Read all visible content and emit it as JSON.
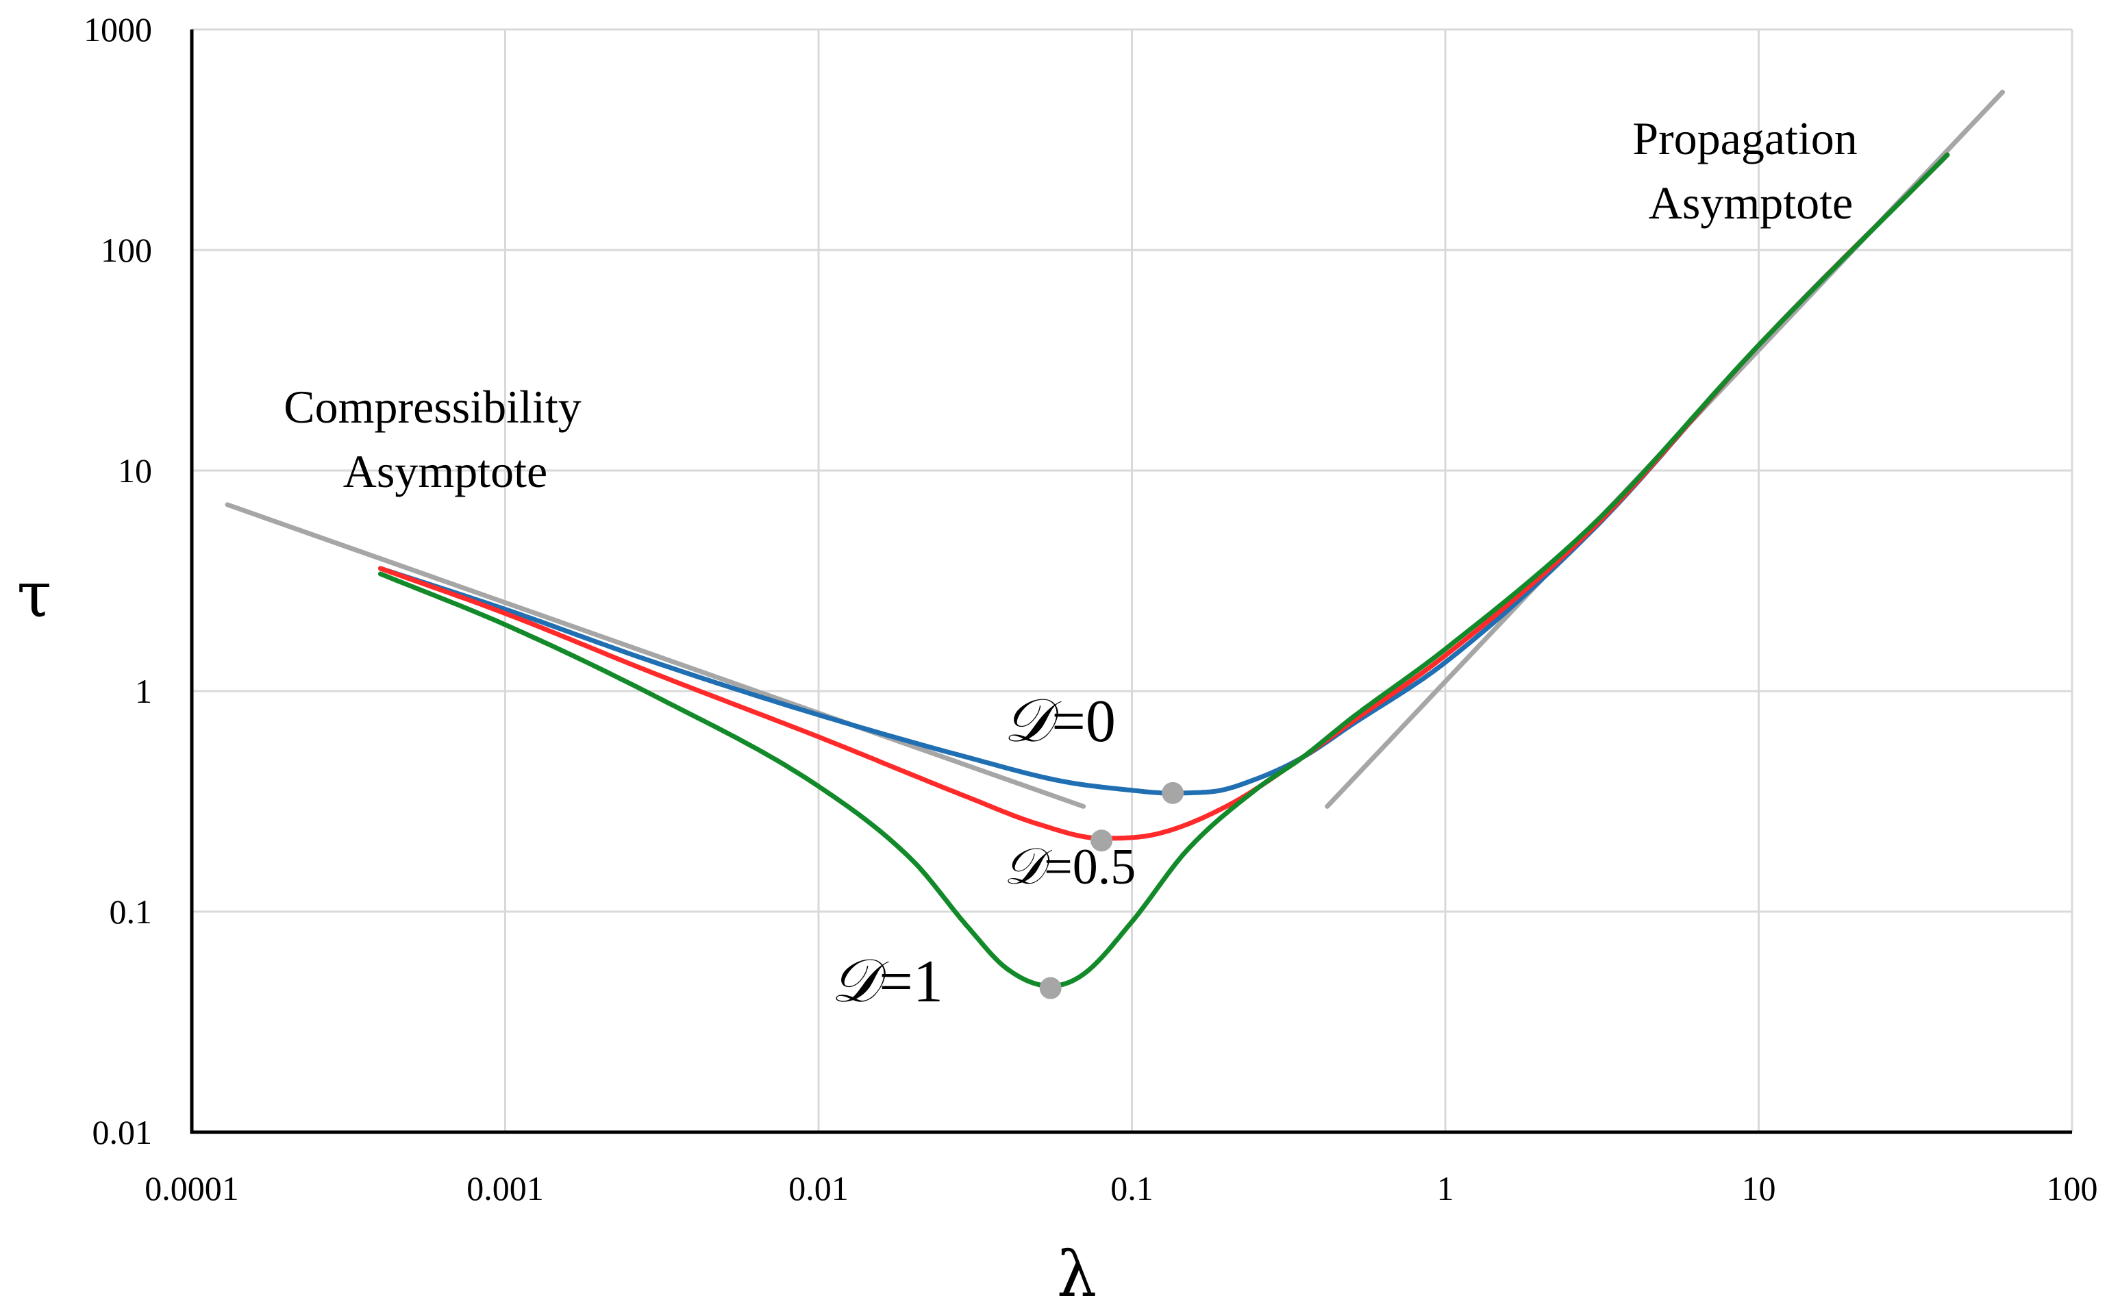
{
  "chart_data": {
    "type": "line",
    "xscale": "log",
    "yscale": "log",
    "xlabel": "λ",
    "ylabel": "τ",
    "xlim": [
      0.0001,
      100
    ],
    "ylim": [
      0.01,
      1000
    ],
    "grid": true,
    "x_ticks": [
      "0.0001",
      "0.001",
      "0.01",
      "0.1",
      "1",
      "10",
      "100"
    ],
    "y_ticks": [
      "1000",
      "100",
      "10",
      "1",
      "0.1",
      "0.01"
    ],
    "series": [
      {
        "name": "D=0",
        "symbol": "𝒟",
        "value_text": "=0",
        "color": "#1f6fb2",
        "points": [
          [
            0.0004,
            3.6
          ],
          [
            0.001,
            2.35
          ],
          [
            0.003,
            1.35
          ],
          [
            0.01,
            0.78
          ],
          [
            0.03,
            0.5
          ],
          [
            0.06,
            0.39
          ],
          [
            0.1,
            0.355
          ],
          [
            0.13,
            0.345
          ],
          [
            0.18,
            0.35
          ],
          [
            0.25,
            0.4
          ],
          [
            0.35,
            0.5
          ],
          [
            0.5,
            0.7
          ],
          [
            1,
            1.35
          ],
          [
            3,
            5.5
          ],
          [
            10,
            37
          ],
          [
            40,
            270
          ]
        ],
        "minimum": [
          0.135,
          0.345
        ]
      },
      {
        "name": "D=0.5",
        "symbol": "𝒟",
        "value_text": "=0.5",
        "color": "#ff2a2a",
        "points": [
          [
            0.0004,
            3.6
          ],
          [
            0.001,
            2.25
          ],
          [
            0.003,
            1.2
          ],
          [
            0.01,
            0.62
          ],
          [
            0.03,
            0.33
          ],
          [
            0.05,
            0.25
          ],
          [
            0.08,
            0.215
          ],
          [
            0.12,
            0.225
          ],
          [
            0.2,
            0.3
          ],
          [
            0.35,
            0.5
          ],
          [
            0.5,
            0.72
          ],
          [
            1,
            1.45
          ],
          [
            3,
            5.6
          ],
          [
            10,
            37
          ],
          [
            40,
            270
          ]
        ],
        "minimum": [
          0.08,
          0.21
        ]
      },
      {
        "name": "D=1",
        "symbol": "𝒟",
        "value_text": "=1",
        "color": "#138a2a",
        "points": [
          [
            0.0004,
            3.4
          ],
          [
            0.001,
            2.0
          ],
          [
            0.003,
            0.95
          ],
          [
            0.01,
            0.37
          ],
          [
            0.02,
            0.17
          ],
          [
            0.03,
            0.085
          ],
          [
            0.04,
            0.055
          ],
          [
            0.055,
            0.046
          ],
          [
            0.07,
            0.052
          ],
          [
            0.1,
            0.09
          ],
          [
            0.15,
            0.19
          ],
          [
            0.25,
            0.36
          ],
          [
            0.35,
            0.5
          ],
          [
            0.5,
            0.75
          ],
          [
            1,
            1.55
          ],
          [
            3,
            5.8
          ],
          [
            10,
            37
          ],
          [
            40,
            270
          ]
        ],
        "minimum": [
          0.055,
          0.045
        ]
      }
    ],
    "asymptotes": [
      {
        "name": "Compressibility Asymptote",
        "lines": [
          "Compressibility",
          "Asymptote"
        ],
        "color": "#a6a6a6",
        "points": [
          [
            0.00013,
            7.0
          ],
          [
            0.07,
            0.3
          ]
        ]
      },
      {
        "name": "Propagation Asymptote",
        "lines": [
          "Propagation",
          "Asymptote"
        ],
        "color": "#a6a6a6",
        "points": [
          [
            0.42,
            0.3
          ],
          [
            60,
            520
          ]
        ]
      }
    ],
    "marker_color": "#a6a6a6"
  }
}
